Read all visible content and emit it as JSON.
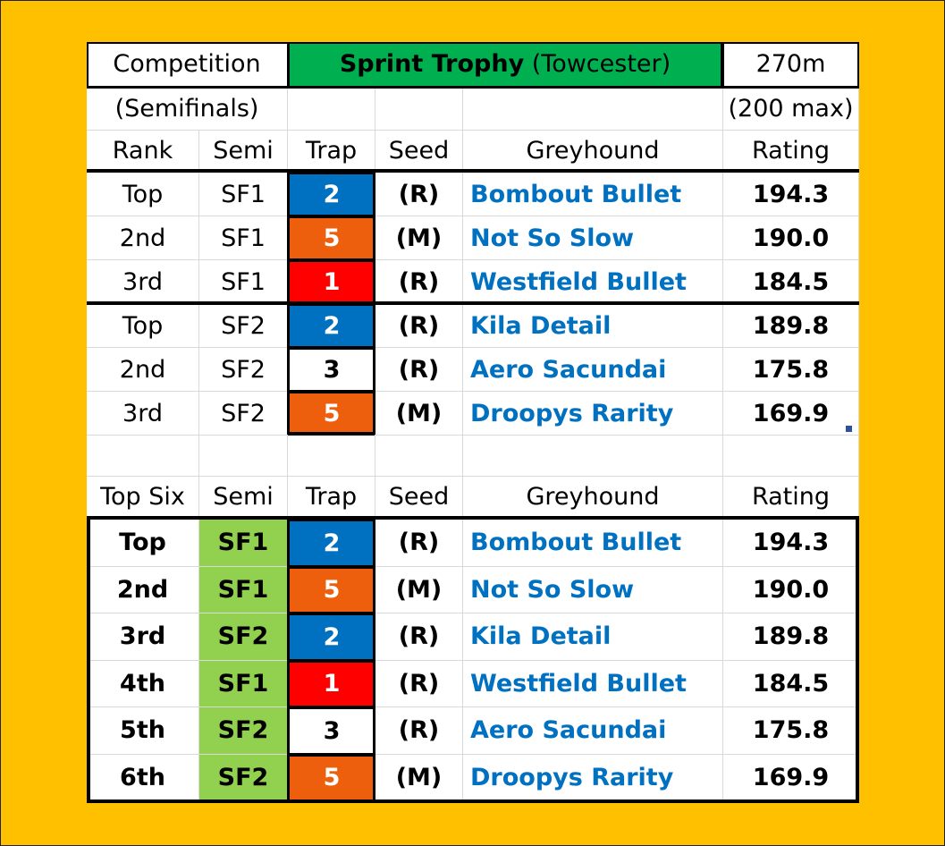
{
  "header": {
    "competition_label": "Competition",
    "title_bold": "Sprint Trophy",
    "title_venue": " (Towcester)",
    "distance": "270m",
    "stage": "(Semifinals)",
    "max_note": "(200 max)"
  },
  "colors": {
    "page_background": "#ffc000",
    "title_fill": "#00b050",
    "semi_fill": "#92d050",
    "trap_1": "#ff0000",
    "trap_2": "#0070c0",
    "trap_3": "#ffffff",
    "trap_5": "#ed5f0c",
    "greyhound_text": "#0070c0"
  },
  "semis_table": {
    "headers": [
      "Rank",
      "Semi",
      "Trap",
      "Seed",
      "Greyhound",
      "Rating"
    ],
    "rows": [
      {
        "rank": "Top",
        "semi": "SF1",
        "trap": "2",
        "seed": "(R)",
        "greyhound": "Bombout Bullet",
        "rating": "194.3"
      },
      {
        "rank": "2nd",
        "semi": "SF1",
        "trap": "5",
        "seed": "(M)",
        "greyhound": "Not So Slow",
        "rating": "190.0"
      },
      {
        "rank": "3rd",
        "semi": "SF1",
        "trap": "1",
        "seed": "(R)",
        "greyhound": "Westfield Bullet",
        "rating": "184.5"
      },
      {
        "rank": "Top",
        "semi": "SF2",
        "trap": "2",
        "seed": "(R)",
        "greyhound": "Kila Detail",
        "rating": "189.8"
      },
      {
        "rank": "2nd",
        "semi": "SF2",
        "trap": "3",
        "seed": "(R)",
        "greyhound": "Aero Sacundai",
        "rating": "175.8"
      },
      {
        "rank": "3rd",
        "semi": "SF2",
        "trap": "5",
        "seed": "(M)",
        "greyhound": "Droopys Rarity",
        "rating": "169.9"
      }
    ]
  },
  "top_six_table": {
    "headers": [
      "Top Six",
      "Semi",
      "Trap",
      "Seed",
      "Greyhound",
      "Rating"
    ],
    "rows": [
      {
        "rank": "Top",
        "semi": "SF1",
        "trap": "2",
        "seed": "(R)",
        "greyhound": "Bombout Bullet",
        "rating": "194.3"
      },
      {
        "rank": "2nd",
        "semi": "SF1",
        "trap": "5",
        "seed": "(M)",
        "greyhound": "Not So Slow",
        "rating": "190.0"
      },
      {
        "rank": "3rd",
        "semi": "SF2",
        "trap": "2",
        "seed": "(R)",
        "greyhound": "Kila Detail",
        "rating": "189.8"
      },
      {
        "rank": "4th",
        "semi": "SF1",
        "trap": "1",
        "seed": "(R)",
        "greyhound": "Westfield Bullet",
        "rating": "184.5"
      },
      {
        "rank": "5th",
        "semi": "SF2",
        "trap": "3",
        "seed": "(R)",
        "greyhound": "Aero Sacundai",
        "rating": "175.8"
      },
      {
        "rank": "6th",
        "semi": "SF2",
        "trap": "5",
        "seed": "(M)",
        "greyhound": "Droopys Rarity",
        "rating": "169.9"
      }
    ]
  }
}
